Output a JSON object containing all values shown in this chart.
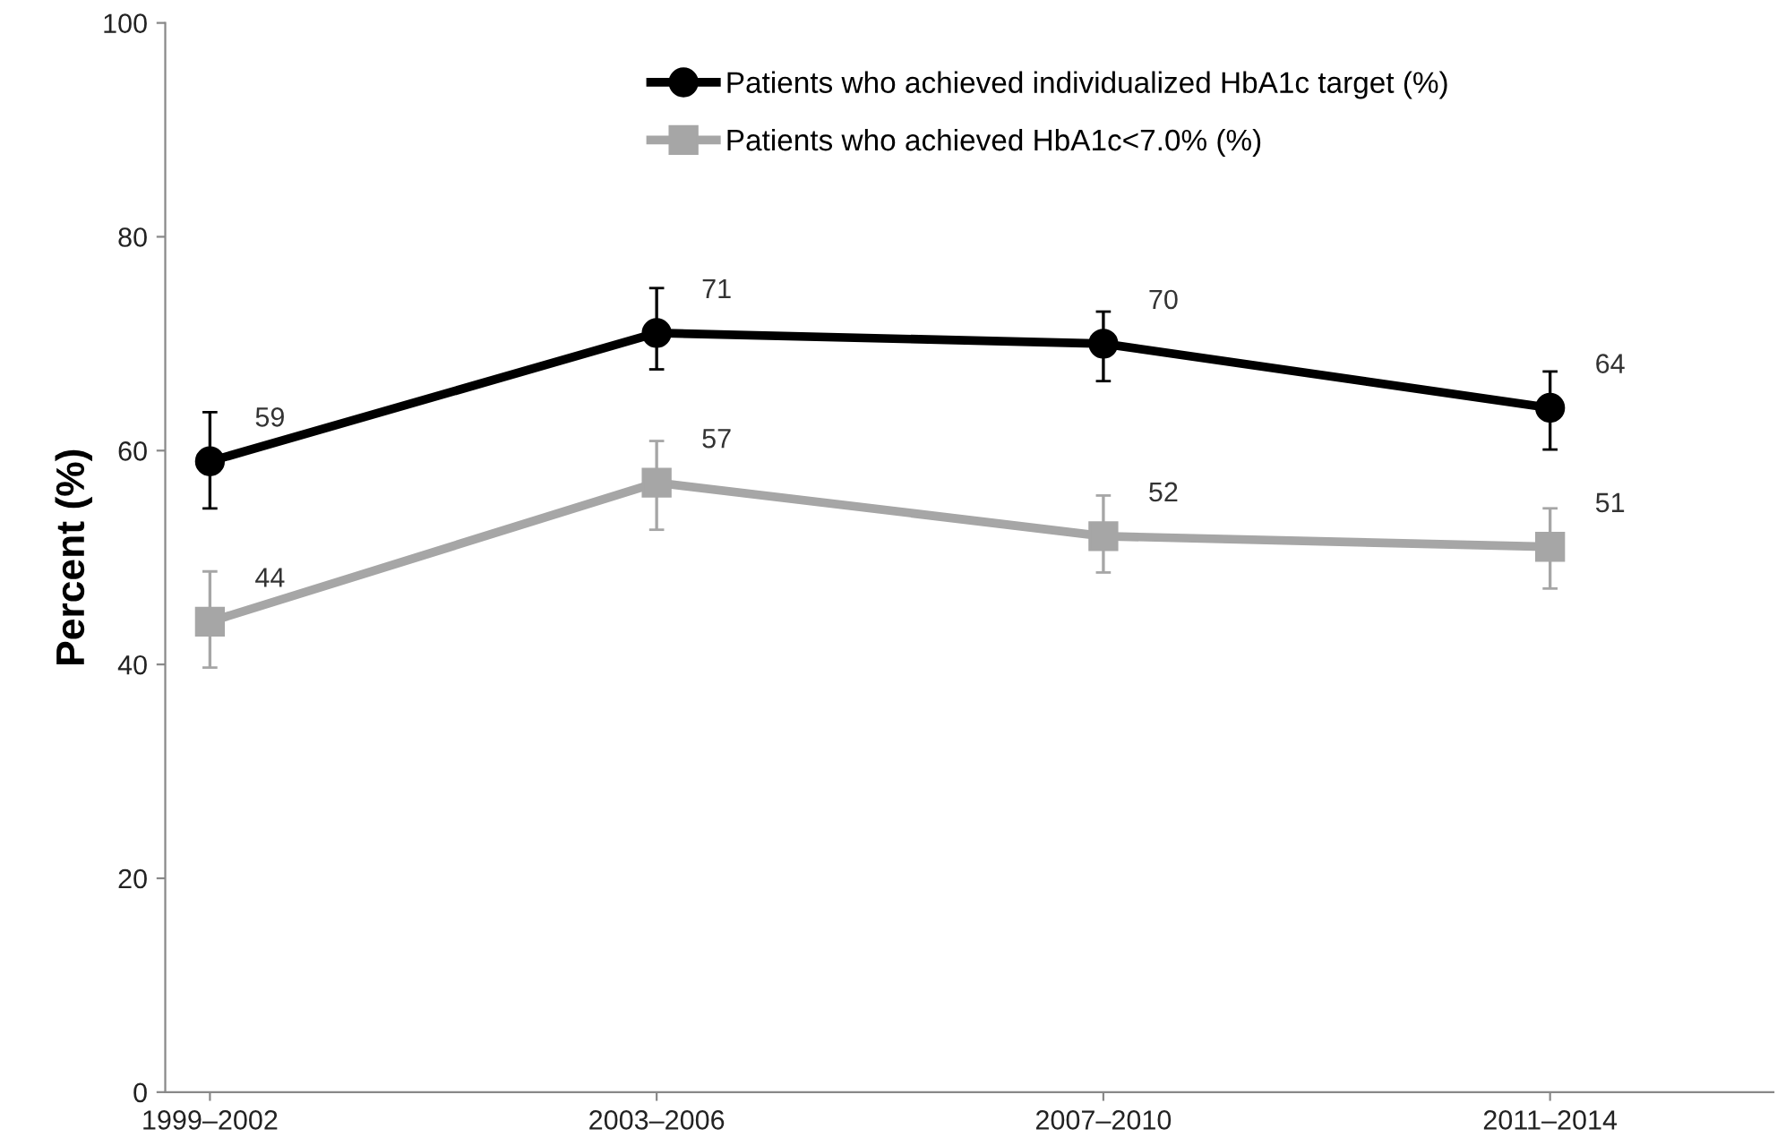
{
  "chart_data": {
    "type": "line",
    "ylabel": "Percent (%)",
    "categories": [
      "1999–2002",
      "2003–2006",
      "2007–2010",
      "2011–2014"
    ],
    "series": [
      {
        "name": "Patients who achieved individualized HbA1c target (%)",
        "color": "#000000",
        "marker": "circle",
        "values": [
          59,
          71,
          70,
          64
        ],
        "errors": [
          [
            54.6,
            63.6
          ],
          [
            67.6,
            75.2
          ],
          [
            66.5,
            73.0
          ],
          [
            60.1,
            67.4
          ]
        ]
      },
      {
        "name": "Patients who achieved HbA1c<7.0% (%)",
        "color": "#a6a6a6",
        "marker": "square",
        "values": [
          44,
          57,
          52,
          51
        ],
        "errors": [
          [
            39.7,
            48.7
          ],
          [
            52.6,
            60.9
          ],
          [
            48.6,
            55.8
          ],
          [
            47.1,
            54.6
          ]
        ]
      }
    ],
    "ylim": [
      0,
      100
    ],
    "yticks": [
      0,
      20,
      40,
      60,
      80,
      100
    ],
    "grid": false,
    "legend": "top",
    "data_labels": true,
    "line_style": "solid"
  }
}
